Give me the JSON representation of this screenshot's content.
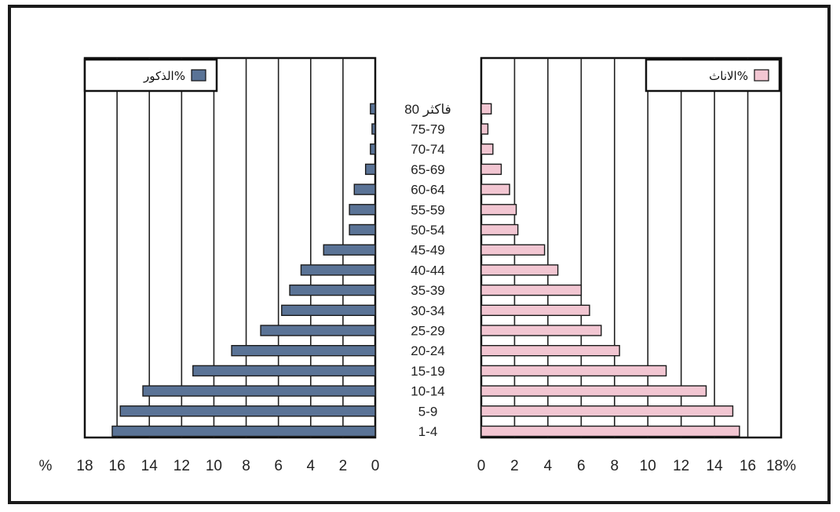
{
  "chart_data": [
    {
      "type": "bar",
      "orientation": "horizontal",
      "direction": "right-to-left",
      "legend": {
        "label": "الذكور%",
        "position": "top-left",
        "color": "#5a7396"
      },
      "categories": [
        "1-4",
        "5-9",
        "10-14",
        "15-19",
        "20-24",
        "25-29",
        "30-34",
        "35-39",
        "40-44",
        "45-49",
        "50-54",
        "55-59",
        "60-64",
        "65-69",
        "70-74",
        "75-79",
        "80 فاكثر"
      ],
      "series": [
        {
          "name": "الذكور%",
          "color": "#5a7396",
          "values": [
            16.3,
            15.8,
            14.4,
            11.3,
            8.9,
            7.1,
            5.8,
            5.3,
            4.6,
            3.2,
            1.6,
            1.6,
            1.3,
            0.6,
            0.3,
            0.2,
            0.3
          ]
        }
      ],
      "xlim": [
        0,
        18
      ],
      "xticks": [
        "18",
        "16",
        "14",
        "12",
        "10",
        "8",
        "6",
        "4",
        "2",
        "0"
      ],
      "xunit": "%",
      "grid": true
    },
    {
      "type": "bar",
      "orientation": "horizontal",
      "direction": "left-to-right",
      "legend": {
        "label": "الاناث%",
        "position": "top-right",
        "color": "#f2c6d2"
      },
      "categories": [
        "1-4",
        "5-9",
        "10-14",
        "15-19",
        "20-24",
        "25-29",
        "30-34",
        "35-39",
        "40-44",
        "45-49",
        "50-54",
        "55-59",
        "60-64",
        "65-69",
        "70-74",
        "75-79",
        "80 فاكثر"
      ],
      "series": [
        {
          "name": "الاناث%",
          "color": "#f2c6d2",
          "values": [
            15.5,
            15.1,
            13.5,
            11.1,
            8.3,
            7.2,
            6.5,
            6.0,
            4.6,
            3.8,
            2.2,
            2.1,
            1.7,
            1.2,
            0.7,
            0.4,
            0.6
          ]
        }
      ],
      "xlim": [
        0,
        18
      ],
      "xticks": [
        "0",
        "2",
        "4",
        "6",
        "8",
        "10",
        "12",
        "14",
        "16",
        "18%"
      ],
      "grid": true
    }
  ]
}
